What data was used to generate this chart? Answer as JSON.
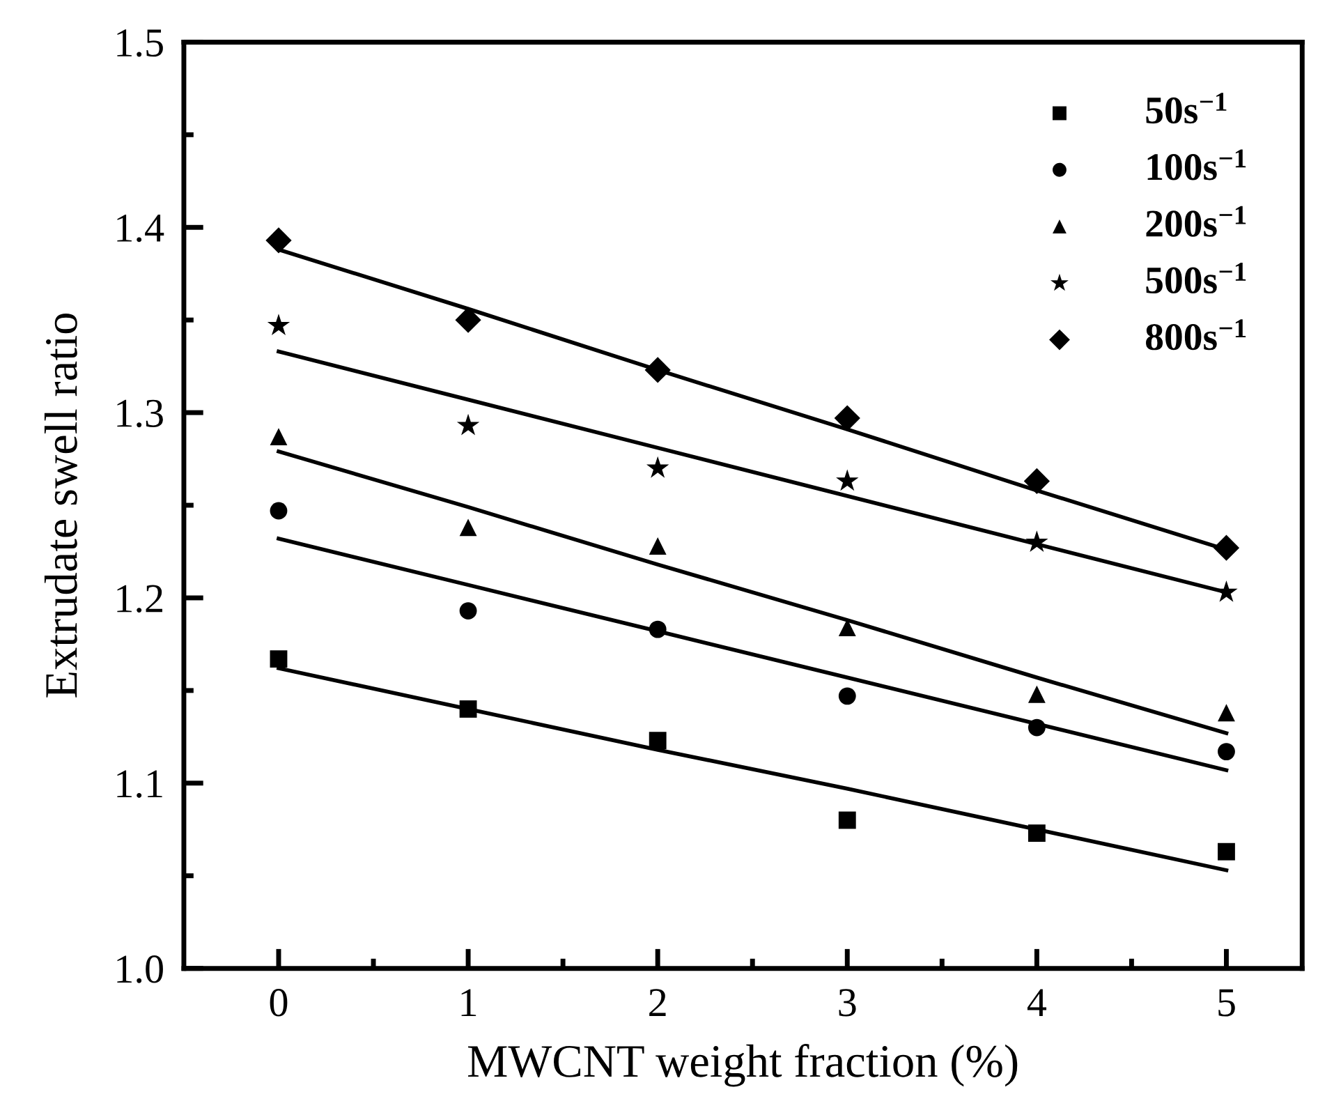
{
  "chart_data": {
    "type": "scatter",
    "xlabel": "MWCNT weight fraction (%)",
    "ylabel": "Extrudate swell ratio",
    "x": [
      0,
      1,
      2,
      3,
      4,
      5
    ],
    "series": [
      {
        "name": "50s$^{−1}$",
        "color": "#000000",
        "marker": "square",
        "values": [
          1.167,
          1.14,
          1.123,
          1.08,
          1.073,
          1.063
        ]
      },
      {
        "name": "100s$^{−1}$",
        "color": "#000000",
        "marker": "circle",
        "values": [
          1.247,
          1.193,
          1.183,
          1.147,
          1.13,
          1.117
        ]
      },
      {
        "name": "200s$^{−1}$",
        "color": "#000000",
        "marker": "triangle",
        "values": [
          1.287,
          1.238,
          1.228,
          1.184,
          1.148,
          1.138
        ]
      },
      {
        "name": "500s$^{−1}$",
        "color": "#000000",
        "marker": "star",
        "values": [
          1.347,
          1.293,
          1.27,
          1.263,
          1.23,
          1.203
        ]
      },
      {
        "name": "800s$^{−1}$",
        "color": "#000000",
        "marker": "diamond",
        "values": [
          1.393,
          1.35,
          1.323,
          1.297,
          1.263,
          1.227
        ]
      },
      {
        "type": "line",
        "color": "#000000",
        "values": [
          1.162,
          1.14,
          1.118,
          1.097,
          1.075,
          1.053
        ]
      },
      {
        "type": "line",
        "color": "#000000",
        "values": [
          1.232,
          1.207,
          1.182,
          1.157,
          1.132,
          1.107
        ]
      },
      {
        "type": "line",
        "color": "#000000",
        "values": [
          1.279,
          1.249,
          1.218,
          1.188,
          1.157,
          1.127
        ]
      },
      {
        "type": "line",
        "color": "#000000",
        "values": [
          1.333,
          1.307,
          1.281,
          1.255,
          1.229,
          1.203
        ]
      },
      {
        "type": "line",
        "color": "#000000",
        "values": [
          1.388,
          1.356,
          1.323,
          1.291,
          1.258,
          1.226
        ]
      }
    ],
    "xlim": [
      -0.5,
      5.4
    ],
    "ylim": [
      1.0,
      1.5
    ],
    "xticks": [
      0,
      {
        "value": 0.5,
        "label": null
      },
      1,
      {
        "value": 1.5,
        "label": null
      },
      2,
      {
        "value": 2.5,
        "label": null
      },
      3,
      {
        "value": 3.5,
        "label": null
      },
      4,
      {
        "value": 4.5,
        "label": null
      },
      5
    ],
    "yticks": [
      {
        "value": 1.0,
        "label": "1.0"
      },
      {
        "value": 1.05,
        "label": null
      },
      {
        "value": 1.1,
        "label": "1.1"
      },
      {
        "value": 1.15,
        "label": null
      },
      {
        "value": 1.2,
        "label": "1.2"
      },
      {
        "value": 1.25,
        "label": null
      },
      {
        "value": 1.3,
        "label": "1.3"
      },
      {
        "value": 1.35,
        "label": null
      },
      {
        "value": 1.4,
        "label": "1.4"
      },
      {
        "value": 1.45,
        "label": null
      },
      {
        "value": 1.5,
        "label": "1.5"
      }
    ],
    "grid": false,
    "legend": "top right",
    "line_style": "solid"
  }
}
